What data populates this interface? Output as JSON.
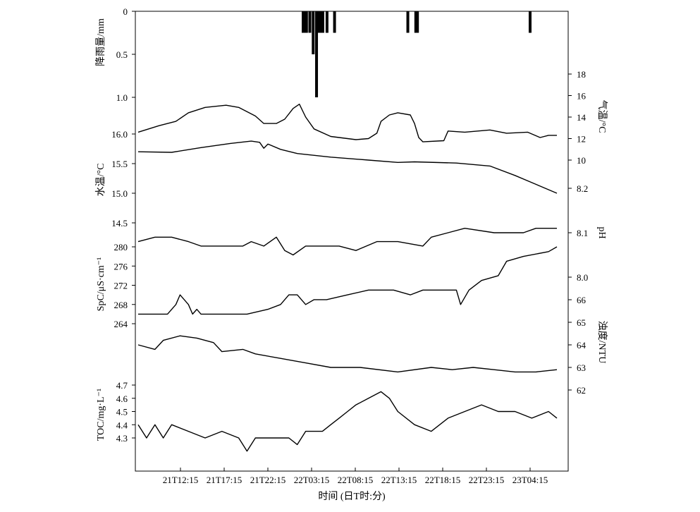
{
  "chart_data": {
    "type": "line",
    "xlabel": "时间 (日T时:分)",
    "x_ticks": [
      "21T12:15",
      "21T17:15",
      "21T22:15",
      "22T03:15",
      "22T08:15",
      "22T13:15",
      "22T18:15",
      "22T23:15",
      "23T04:15"
    ],
    "panels": {
      "rain": {
        "ylabel": "降雨量/mm",
        "ylim": [
          0,
          1.0
        ],
        "inverted": true,
        "ticks": [
          "0",
          "0.5",
          "1.0"
        ],
        "bars": [
          {
            "t": 0.394,
            "v": 0.25
          },
          {
            "t": 0.398,
            "v": 0.25
          },
          {
            "t": 0.402,
            "v": 0.25
          },
          {
            "t": 0.41,
            "v": 0.25
          },
          {
            "t": 0.418,
            "v": 0.5
          },
          {
            "t": 0.426,
            "v": 1.0
          },
          {
            "t": 0.432,
            "v": 0.25
          },
          {
            "t": 0.436,
            "v": 0.25
          },
          {
            "t": 0.441,
            "v": 0.25
          },
          {
            "t": 0.451,
            "v": 0.25
          },
          {
            "t": 0.469,
            "v": 0.25
          },
          {
            "t": 0.644,
            "v": 0.25
          },
          {
            "t": 0.663,
            "v": 0.25
          },
          {
            "t": 0.667,
            "v": 0.25
          },
          {
            "t": 0.936,
            "v": 0.25
          }
        ]
      },
      "air_temp": {
        "ylabel": "气温/°C",
        "ylim": [
          10,
          18
        ],
        "ticks": [
          "18",
          "16",
          "14",
          "12",
          "10"
        ],
        "points": [
          [
            0,
            12.6
          ],
          [
            0.05,
            13.2
          ],
          [
            0.09,
            13.6
          ],
          [
            0.12,
            14.4
          ],
          [
            0.16,
            14.9
          ],
          [
            0.21,
            15.1
          ],
          [
            0.24,
            14.9
          ],
          [
            0.28,
            14.1
          ],
          [
            0.3,
            13.4
          ],
          [
            0.33,
            13.4
          ],
          [
            0.35,
            13.8
          ],
          [
            0.37,
            14.8
          ],
          [
            0.385,
            15.2
          ],
          [
            0.4,
            14.0
          ],
          [
            0.42,
            12.9
          ],
          [
            0.46,
            12.2
          ],
          [
            0.52,
            11.9
          ],
          [
            0.55,
            12.0
          ],
          [
            0.57,
            12.5
          ],
          [
            0.58,
            13.6
          ],
          [
            0.6,
            14.2
          ],
          [
            0.62,
            14.4
          ],
          [
            0.65,
            14.2
          ],
          [
            0.66,
            13.4
          ],
          [
            0.67,
            12.1
          ],
          [
            0.68,
            11.7
          ],
          [
            0.73,
            11.8
          ],
          [
            0.74,
            12.7
          ],
          [
            0.78,
            12.6
          ],
          [
            0.84,
            12.8
          ],
          [
            0.88,
            12.5
          ],
          [
            0.93,
            12.6
          ],
          [
            0.96,
            12.1
          ],
          [
            0.98,
            12.3
          ],
          [
            1,
            12.3
          ]
        ]
      },
      "water_temp": {
        "ylabel": "水温/°C",
        "ylim": [
          14.5,
          16.0
        ],
        "ticks": [
          "16.0",
          "15.5",
          "15.0",
          "14.5"
        ],
        "points": [
          [
            0,
            15.7
          ],
          [
            0.08,
            15.69
          ],
          [
            0.15,
            15.77
          ],
          [
            0.22,
            15.84
          ],
          [
            0.27,
            15.88
          ],
          [
            0.29,
            15.86
          ],
          [
            0.3,
            15.76
          ],
          [
            0.31,
            15.83
          ],
          [
            0.34,
            15.74
          ],
          [
            0.38,
            15.67
          ],
          [
            0.46,
            15.61
          ],
          [
            0.55,
            15.56
          ],
          [
            0.62,
            15.52
          ],
          [
            0.66,
            15.53
          ],
          [
            0.76,
            15.51
          ],
          [
            0.84,
            15.46
          ],
          [
            0.9,
            15.3
          ],
          [
            0.95,
            15.15
          ],
          [
            1,
            15.0
          ]
        ]
      },
      "ph": {
        "ylabel": "pH",
        "ylim": [
          8.0,
          8.2
        ],
        "ticks": [
          "8.2",
          "8.1",
          "8.0"
        ],
        "points": [
          [
            0,
            8.08
          ],
          [
            0.04,
            8.09
          ],
          [
            0.08,
            8.09
          ],
          [
            0.12,
            8.08
          ],
          [
            0.15,
            8.07
          ],
          [
            0.25,
            8.07
          ],
          [
            0.27,
            8.08
          ],
          [
            0.3,
            8.07
          ],
          [
            0.33,
            8.09
          ],
          [
            0.35,
            8.06
          ],
          [
            0.37,
            8.05
          ],
          [
            0.4,
            8.07
          ],
          [
            0.48,
            8.07
          ],
          [
            0.52,
            8.06
          ],
          [
            0.57,
            8.08
          ],
          [
            0.62,
            8.08
          ],
          [
            0.68,
            8.07
          ],
          [
            0.7,
            8.09
          ],
          [
            0.74,
            8.1
          ],
          [
            0.78,
            8.11
          ],
          [
            0.85,
            8.1
          ],
          [
            0.92,
            8.1
          ],
          [
            0.95,
            8.11
          ],
          [
            1,
            8.11
          ]
        ]
      },
      "spc": {
        "ylabel": "SpC/μS·cm⁻¹",
        "ylim": [
          264,
          280
        ],
        "ticks": [
          "280",
          "276",
          "272",
          "268",
          "264"
        ],
        "points": [
          [
            0,
            266
          ],
          [
            0.07,
            266
          ],
          [
            0.09,
            268
          ],
          [
            0.1,
            270
          ],
          [
            0.12,
            268
          ],
          [
            0.13,
            266
          ],
          [
            0.14,
            267
          ],
          [
            0.15,
            266
          ],
          [
            0.26,
            266
          ],
          [
            0.31,
            267
          ],
          [
            0.34,
            268
          ],
          [
            0.36,
            270
          ],
          [
            0.38,
            270
          ],
          [
            0.4,
            268
          ],
          [
            0.42,
            269
          ],
          [
            0.45,
            269
          ],
          [
            0.5,
            270
          ],
          [
            0.55,
            271
          ],
          [
            0.61,
            271
          ],
          [
            0.65,
            270
          ],
          [
            0.68,
            271
          ],
          [
            0.7,
            271
          ],
          [
            0.76,
            271
          ],
          [
            0.77,
            268
          ],
          [
            0.79,
            271
          ],
          [
            0.82,
            273
          ],
          [
            0.86,
            274
          ],
          [
            0.88,
            277
          ],
          [
            0.92,
            278
          ],
          [
            0.98,
            279
          ],
          [
            1,
            280
          ]
        ]
      },
      "turbidity": {
        "ylabel": "浊度/NTU",
        "ylim": [
          62,
          66
        ],
        "ticks": [
          "66",
          "65",
          "64",
          "63",
          "62"
        ],
        "points": [
          [
            0,
            64.0
          ],
          [
            0.04,
            63.8
          ],
          [
            0.06,
            64.2
          ],
          [
            0.1,
            64.4
          ],
          [
            0.14,
            64.3
          ],
          [
            0.18,
            64.1
          ],
          [
            0.2,
            63.7
          ],
          [
            0.25,
            63.8
          ],
          [
            0.28,
            63.6
          ],
          [
            0.34,
            63.4
          ],
          [
            0.4,
            63.2
          ],
          [
            0.46,
            63.0
          ],
          [
            0.53,
            63.0
          ],
          [
            0.62,
            62.8
          ],
          [
            0.7,
            63.0
          ],
          [
            0.75,
            62.9
          ],
          [
            0.8,
            63.0
          ],
          [
            0.85,
            62.9
          ],
          [
            0.9,
            62.8
          ],
          [
            0.95,
            62.8
          ],
          [
            1,
            62.9
          ]
        ]
      },
      "toc": {
        "ylabel": "TOC/mg·L⁻¹",
        "ylim": [
          4.3,
          4.7
        ],
        "ticks": [
          "4.7",
          "4.6",
          "4.5",
          "4.4",
          "4.3"
        ],
        "points": [
          [
            0,
            4.4
          ],
          [
            0.02,
            4.3
          ],
          [
            0.04,
            4.4
          ],
          [
            0.06,
            4.3
          ],
          [
            0.08,
            4.4
          ],
          [
            0.12,
            4.35
          ],
          [
            0.16,
            4.3
          ],
          [
            0.2,
            4.35
          ],
          [
            0.24,
            4.3
          ],
          [
            0.26,
            4.2
          ],
          [
            0.28,
            4.3
          ],
          [
            0.32,
            4.3
          ],
          [
            0.36,
            4.3
          ],
          [
            0.38,
            4.25
          ],
          [
            0.4,
            4.35
          ],
          [
            0.44,
            4.35
          ],
          [
            0.46,
            4.4
          ],
          [
            0.48,
            4.45
          ],
          [
            0.5,
            4.5
          ],
          [
            0.52,
            4.55
          ],
          [
            0.55,
            4.6
          ],
          [
            0.58,
            4.65
          ],
          [
            0.6,
            4.6
          ],
          [
            0.62,
            4.5
          ],
          [
            0.66,
            4.4
          ],
          [
            0.7,
            4.35
          ],
          [
            0.74,
            4.45
          ],
          [
            0.78,
            4.5
          ],
          [
            0.82,
            4.55
          ],
          [
            0.86,
            4.5
          ],
          [
            0.9,
            4.5
          ],
          [
            0.94,
            4.45
          ],
          [
            0.98,
            4.5
          ],
          [
            1,
            4.45
          ]
        ]
      }
    }
  }
}
